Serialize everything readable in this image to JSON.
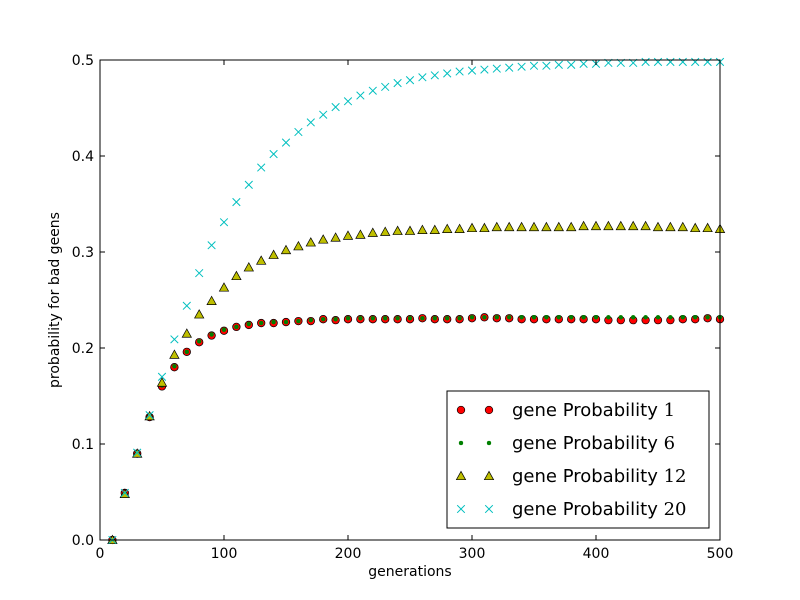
{
  "chart_data": {
    "type": "scatter",
    "title": "",
    "xlabel": "generations",
    "ylabel": "probability for bad geens",
    "xlim": [
      0,
      500
    ],
    "ylim": [
      0.0,
      0.5
    ],
    "xticks": [
      "0",
      "100",
      "200",
      "300",
      "400",
      "500"
    ],
    "yticks": [
      "0.0",
      "0.1",
      "0.2",
      "0.3",
      "0.4",
      "0.5"
    ],
    "grid": false,
    "legend_position": "lower-right",
    "x": [
      10,
      20,
      30,
      40,
      50,
      60,
      70,
      80,
      90,
      100,
      110,
      120,
      130,
      140,
      150,
      160,
      170,
      180,
      190,
      200,
      210,
      220,
      230,
      240,
      250,
      260,
      270,
      280,
      290,
      300,
      310,
      320,
      330,
      340,
      350,
      360,
      370,
      380,
      390,
      400,
      410,
      420,
      430,
      440,
      450,
      460,
      470,
      480,
      490,
      500
    ],
    "series": [
      {
        "name": "gene Probability",
        "name_value": "1",
        "marker": "circle",
        "color": "#ff0000",
        "values": [
          0.0,
          0.049,
          0.09,
          0.128,
          0.16,
          0.18,
          0.196,
          0.206,
          0.213,
          0.218,
          0.222,
          0.224,
          0.226,
          0.226,
          0.227,
          0.228,
          0.228,
          0.23,
          0.229,
          0.23,
          0.23,
          0.23,
          0.23,
          0.23,
          0.23,
          0.231,
          0.23,
          0.23,
          0.23,
          0.231,
          0.232,
          0.231,
          0.231,
          0.23,
          0.23,
          0.23,
          0.23,
          0.23,
          0.23,
          0.23,
          0.229,
          0.229,
          0.229,
          0.229,
          0.229,
          0.229,
          0.23,
          0.23,
          0.231,
          0.23
        ]
      },
      {
        "name": "gene Probability",
        "name_value": "6",
        "marker": "dot",
        "color": "#008000",
        "values": [
          0.0,
          0.049,
          0.091,
          0.129,
          0.161,
          0.181,
          0.196,
          0.207,
          0.214,
          0.219,
          0.222,
          0.225,
          0.226,
          0.227,
          0.227,
          0.228,
          0.229,
          0.23,
          0.23,
          0.231,
          0.231,
          0.231,
          0.231,
          0.231,
          0.231,
          0.231,
          0.231,
          0.231,
          0.231,
          0.232,
          0.232,
          0.232,
          0.232,
          0.232,
          0.232,
          0.232,
          0.232,
          0.232,
          0.232,
          0.232,
          0.232,
          0.232,
          0.232,
          0.232,
          0.232,
          0.232,
          0.232,
          0.232,
          0.232,
          0.232
        ]
      },
      {
        "name": "gene Probability",
        "name_value": "12",
        "marker": "triangle",
        "color": "#bfbf00",
        "values": [
          0.0,
          0.048,
          0.09,
          0.129,
          0.164,
          0.193,
          0.215,
          0.235,
          0.249,
          0.263,
          0.275,
          0.284,
          0.291,
          0.297,
          0.302,
          0.306,
          0.31,
          0.313,
          0.315,
          0.317,
          0.318,
          0.32,
          0.321,
          0.322,
          0.322,
          0.323,
          0.323,
          0.324,
          0.324,
          0.325,
          0.325,
          0.326,
          0.326,
          0.326,
          0.326,
          0.326,
          0.326,
          0.326,
          0.327,
          0.327,
          0.327,
          0.327,
          0.327,
          0.327,
          0.326,
          0.326,
          0.326,
          0.325,
          0.325,
          0.324
        ]
      },
      {
        "name": "gene Probability",
        "name_value": "20",
        "marker": "x",
        "color": "#00bfbf",
        "values": [
          0.0,
          0.049,
          0.091,
          0.13,
          0.17,
          0.209,
          0.244,
          0.278,
          0.307,
          0.331,
          0.352,
          0.37,
          0.388,
          0.402,
          0.414,
          0.425,
          0.435,
          0.443,
          0.451,
          0.457,
          0.463,
          0.468,
          0.472,
          0.476,
          0.479,
          0.482,
          0.484,
          0.486,
          0.488,
          0.489,
          0.49,
          0.491,
          0.492,
          0.493,
          0.494,
          0.494,
          0.495,
          0.495,
          0.496,
          0.496,
          0.497,
          0.497,
          0.497,
          0.498,
          0.498,
          0.498,
          0.498,
          0.498,
          0.498,
          0.498
        ]
      }
    ]
  }
}
